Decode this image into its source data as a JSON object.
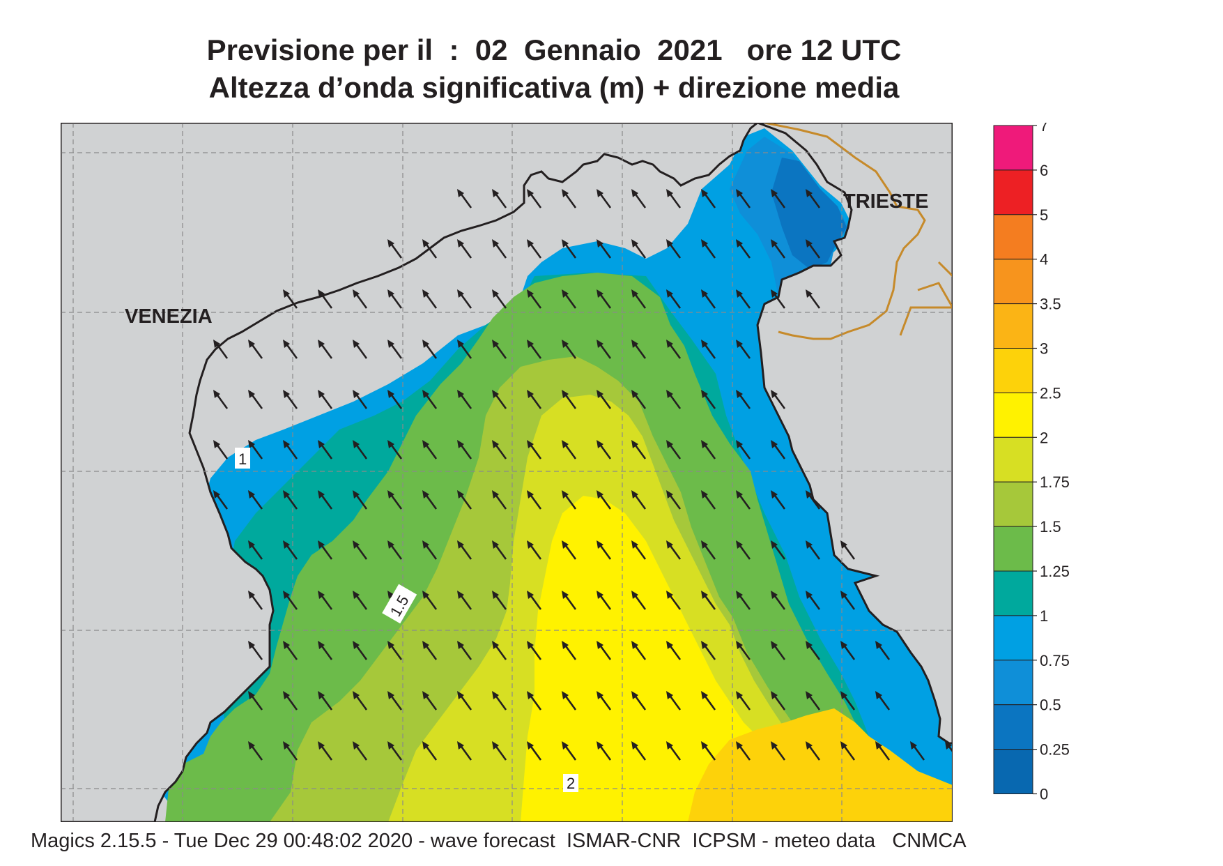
{
  "header": {
    "title_line1": "Previsione per il  :  02  Gennaio  2021   ore 12 UTC",
    "title_line2": "Altezza d’onda significativa (m) + direzione media"
  },
  "map": {
    "city_labels": [
      "VENEZIA",
      "TRIESTE"
    ],
    "contour_labels": [
      "1",
      "1.5",
      "2"
    ],
    "colors": {
      "land": "#d0d2d3",
      "coast": "#231f20",
      "border": "#c68a2a",
      "grid": "#8a8a8a",
      "arrow": "#231f20"
    },
    "wave_direction": "toward north-west"
  },
  "legend": {
    "ticks": [
      "7",
      "6",
      "5",
      "4",
      "3.5",
      "3",
      "2.5",
      "2",
      "1.75",
      "1.5",
      "1.25",
      "1",
      "0.75",
      "0.5",
      "0.25",
      "0"
    ],
    "colors": [
      "#ef1a7a",
      "#ed2024",
      "#f47d20",
      "#f7941d",
      "#fbb415",
      "#fdd20a",
      "#fff200",
      "#d7df23",
      "#a6c83a",
      "#6cbb4a",
      "#00a99d",
      "#00a0e3",
      "#0f8fd8",
      "#0b75c1",
      "#0868b0"
    ]
  },
  "footer": {
    "text": "Magics 2.15.5 - Tue Dec 29 00:48:02 2020 - wave forecast  ISMAR-CNR  ICPSM - meteo data   CNMCA"
  }
}
